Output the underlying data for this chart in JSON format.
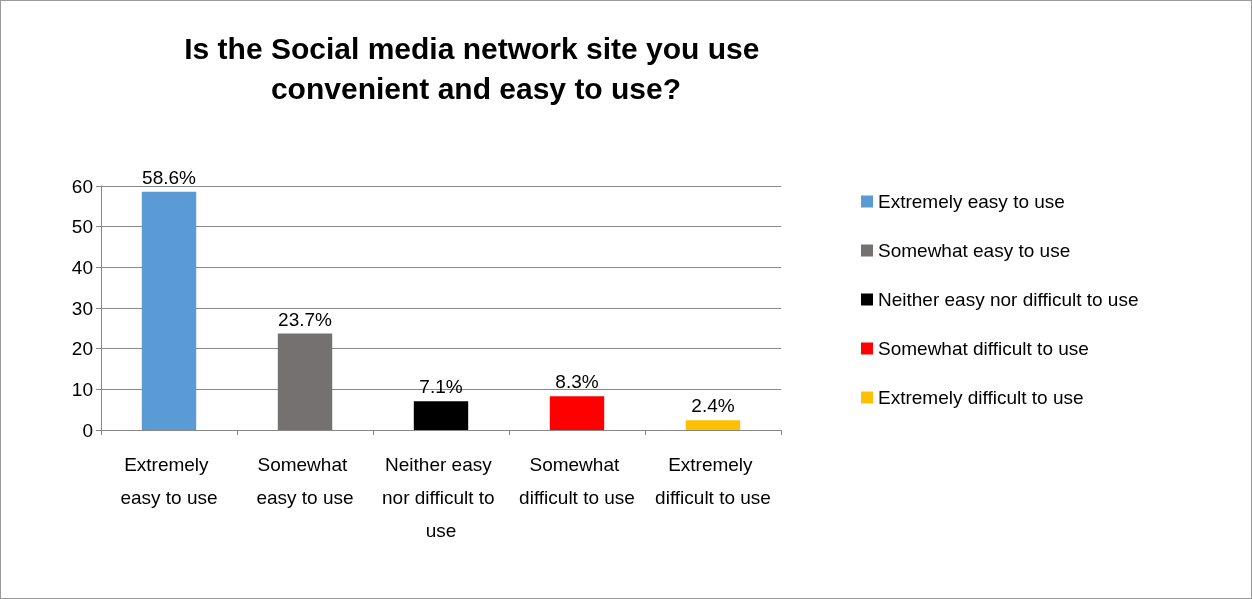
{
  "chart_data": {
    "type": "bar",
    "title": "Is the Social media network site you use convenient and easy to use?",
    "categories": [
      "Extremely easy to use",
      "Somewhat easy to use",
      "Neither easy nor difficult to use",
      "Somewhat difficult to use",
      "Extremely difficult to use"
    ],
    "series": [
      {
        "name": "Extremely easy to use",
        "color": "#5b9bd5",
        "values": [
          58.6,
          null,
          null,
          null,
          null
        ],
        "value_labels": [
          "58.6%",
          null,
          null,
          null,
          null
        ]
      },
      {
        "name": "Somewhat easy to use",
        "color": "#767171",
        "values": [
          null,
          23.7,
          null,
          null,
          null
        ],
        "value_labels": [
          null,
          "23.7%",
          null,
          null,
          null
        ]
      },
      {
        "name": "Neither easy nor difficult to use",
        "color": "#000000",
        "values": [
          null,
          null,
          7.1,
          null,
          null
        ],
        "value_labels": [
          null,
          null,
          "7.1%",
          null,
          null
        ]
      },
      {
        "name": "Somewhat difficult to use",
        "color": "#ff0000",
        "values": [
          null,
          null,
          null,
          8.3,
          null
        ],
        "value_labels": [
          null,
          null,
          null,
          "8.3%",
          null
        ]
      },
      {
        "name": "Extremely difficult to use",
        "color": "#ffc000",
        "values": [
          null,
          null,
          null,
          null,
          2.4
        ],
        "value_labels": [
          null,
          null,
          null,
          null,
          "2.4%"
        ]
      }
    ],
    "ylim": [
      0,
      60
    ],
    "yticks": [
      0,
      10,
      20,
      30,
      40,
      50,
      60
    ],
    "grid": "y",
    "legend": "right"
  }
}
